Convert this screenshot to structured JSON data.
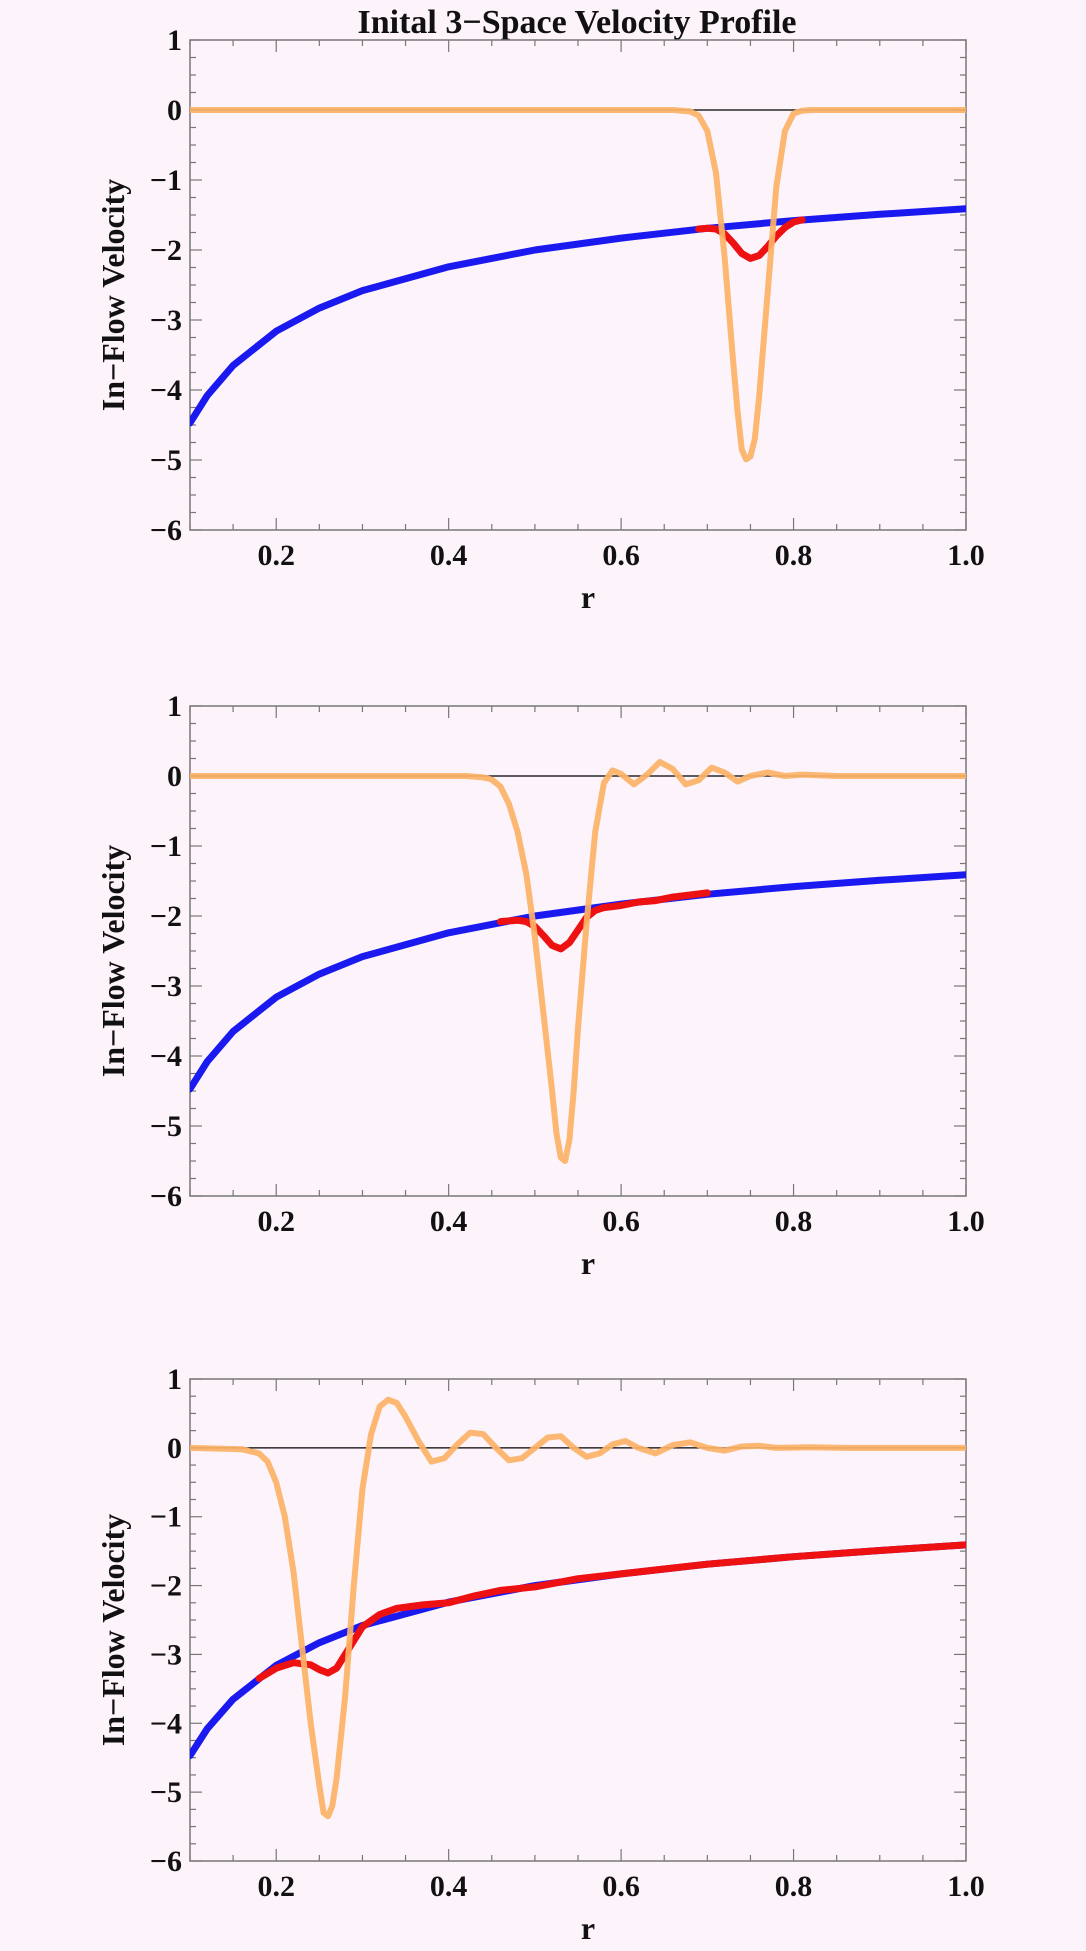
{
  "colors": {
    "background": "#fdf3fb",
    "frame": "#777777",
    "zero_line": "#000000",
    "blue_curve": "#1a1af0",
    "red_curve": "#ee1111",
    "orange_curve": "#fcb266"
  },
  "chart_data": [
    {
      "type": "line",
      "title": "Inital 3−Space Velocity Profile",
      "xlabel": "r",
      "ylabel": "In−Flow Velocity",
      "xlim": [
        0.1,
        1.0
      ],
      "ylim": [
        -6,
        1
      ],
      "x_ticks": [
        0.2,
        0.4,
        0.6,
        0.8,
        1.0
      ],
      "x_tick_labels": [
        "0.2",
        "0.4",
        "0.6",
        "0.8",
        "1.0"
      ],
      "y_ticks": [
        1,
        0,
        -1,
        -2,
        -3,
        -4,
        -5,
        -6
      ],
      "y_tick_labels": [
        "1",
        "0",
        "−1",
        "−2",
        "−3",
        "−4",
        "−5",
        "−6"
      ],
      "zero_line": true,
      "series": [
        {
          "key": "blue",
          "x": [
            0.1,
            0.12,
            0.15,
            0.2,
            0.25,
            0.3,
            0.4,
            0.5,
            0.6,
            0.7,
            0.8,
            0.9,
            1.0
          ],
          "y": [
            -4.47,
            -4.08,
            -3.65,
            -3.16,
            -2.83,
            -2.58,
            -2.24,
            -2.0,
            -1.83,
            -1.69,
            -1.58,
            -1.49,
            -1.41
          ]
        },
        {
          "key": "red",
          "x": [
            0.69,
            0.7,
            0.71,
            0.72,
            0.73,
            0.74,
            0.75,
            0.76,
            0.77,
            0.78,
            0.79,
            0.8,
            0.81
          ],
          "y": [
            -1.7,
            -1.69,
            -1.7,
            -1.77,
            -1.9,
            -2.05,
            -2.12,
            -2.08,
            -1.95,
            -1.8,
            -1.68,
            -1.6,
            -1.57
          ]
        },
        {
          "key": "orange",
          "x": [
            0.1,
            0.66,
            0.68,
            0.69,
            0.7,
            0.71,
            0.72,
            0.73,
            0.735,
            0.74,
            0.745,
            0.75,
            0.755,
            0.76,
            0.77,
            0.78,
            0.79,
            0.8,
            0.81,
            0.82,
            0.84,
            1.0
          ],
          "y": [
            0.0,
            0.0,
            -0.02,
            -0.08,
            -0.3,
            -0.9,
            -2.1,
            -3.6,
            -4.3,
            -4.85,
            -4.99,
            -4.95,
            -4.7,
            -4.1,
            -2.6,
            -1.1,
            -0.3,
            -0.05,
            -0.01,
            0.0,
            0.0,
            0.0
          ]
        }
      ]
    },
    {
      "type": "line",
      "xlabel": "r",
      "ylabel": "In−Flow Velocity",
      "xlim": [
        0.1,
        1.0
      ],
      "ylim": [
        -6,
        1
      ],
      "x_ticks": [
        0.2,
        0.4,
        0.6,
        0.8,
        1.0
      ],
      "x_tick_labels": [
        "0.2",
        "0.4",
        "0.6",
        "0.8",
        "1.0"
      ],
      "y_ticks": [
        1,
        0,
        -1,
        -2,
        -3,
        -4,
        -5,
        -6
      ],
      "y_tick_labels": [
        "1",
        "0",
        "−1",
        "−2",
        "−3",
        "−4",
        "−5",
        "−6"
      ],
      "zero_line": true,
      "series": [
        {
          "key": "blue",
          "x": [
            0.1,
            0.12,
            0.15,
            0.2,
            0.25,
            0.3,
            0.4,
            0.5,
            0.6,
            0.7,
            0.8,
            0.9,
            1.0
          ],
          "y": [
            -4.47,
            -4.08,
            -3.65,
            -3.16,
            -2.83,
            -2.58,
            -2.24,
            -2.0,
            -1.83,
            -1.69,
            -1.58,
            -1.49,
            -1.41
          ]
        },
        {
          "key": "red",
          "x": [
            0.46,
            0.48,
            0.49,
            0.5,
            0.51,
            0.52,
            0.53,
            0.54,
            0.55,
            0.56,
            0.57,
            0.58,
            0.6,
            0.62,
            0.64,
            0.66,
            0.68,
            0.7
          ],
          "y": [
            -2.08,
            -2.06,
            -2.08,
            -2.15,
            -2.28,
            -2.42,
            -2.47,
            -2.38,
            -2.2,
            -2.02,
            -1.92,
            -1.88,
            -1.85,
            -1.8,
            -1.78,
            -1.73,
            -1.7,
            -1.67
          ]
        },
        {
          "key": "orange",
          "x": [
            0.1,
            0.42,
            0.44,
            0.45,
            0.46,
            0.47,
            0.48,
            0.49,
            0.5,
            0.51,
            0.52,
            0.525,
            0.53,
            0.535,
            0.54,
            0.545,
            0.55,
            0.56,
            0.57,
            0.58,
            0.59,
            0.6,
            0.615,
            0.63,
            0.645,
            0.66,
            0.675,
            0.69,
            0.705,
            0.72,
            0.735,
            0.75,
            0.77,
            0.79,
            0.81,
            0.85,
            1.0
          ],
          "y": [
            0.0,
            0.0,
            -0.02,
            -0.05,
            -0.15,
            -0.4,
            -0.8,
            -1.4,
            -2.3,
            -3.4,
            -4.5,
            -5.1,
            -5.45,
            -5.5,
            -5.2,
            -4.5,
            -3.6,
            -2.1,
            -0.8,
            -0.1,
            0.08,
            0.03,
            -0.12,
            0.02,
            0.2,
            0.1,
            -0.12,
            -0.06,
            0.12,
            0.05,
            -0.08,
            0.0,
            0.05,
            0.0,
            0.02,
            0.0,
            0.0
          ]
        }
      ]
    },
    {
      "type": "line",
      "xlabel": "r",
      "ylabel": "In−Flow Velocity",
      "xlim": [
        0.1,
        1.0
      ],
      "ylim": [
        -6,
        1
      ],
      "x_ticks": [
        0.2,
        0.4,
        0.6,
        0.8,
        1.0
      ],
      "x_tick_labels": [
        "0.2",
        "0.4",
        "0.6",
        "0.8",
        "1.0"
      ],
      "y_ticks": [
        1,
        0,
        -1,
        -2,
        -3,
        -4,
        -5,
        -6
      ],
      "y_tick_labels": [
        "1",
        "0",
        "−1",
        "−2",
        "−3",
        "−4",
        "−5",
        "−6"
      ],
      "zero_line": true,
      "series": [
        {
          "key": "blue",
          "x": [
            0.1,
            0.12,
            0.15,
            0.2,
            0.25,
            0.3,
            0.4,
            0.5,
            0.6,
            0.7,
            0.8,
            0.9,
            1.0
          ],
          "y": [
            -4.47,
            -4.08,
            -3.65,
            -3.16,
            -2.83,
            -2.58,
            -2.24,
            -2.0,
            -1.83,
            -1.69,
            -1.58,
            -1.49,
            -1.41
          ]
        },
        {
          "key": "red",
          "x": [
            0.18,
            0.2,
            0.22,
            0.24,
            0.25,
            0.26,
            0.27,
            0.28,
            0.3,
            0.32,
            0.34,
            0.37,
            0.4,
            0.43,
            0.46,
            0.5,
            0.55,
            0.6,
            0.65,
            0.7,
            0.8,
            0.9,
            1.0
          ],
          "y": [
            -3.35,
            -3.2,
            -3.12,
            -3.15,
            -3.22,
            -3.27,
            -3.2,
            -3.0,
            -2.6,
            -2.42,
            -2.33,
            -2.28,
            -2.25,
            -2.15,
            -2.07,
            -2.02,
            -1.9,
            -1.83,
            -1.76,
            -1.69,
            -1.58,
            -1.49,
            -1.41
          ]
        },
        {
          "key": "orange",
          "x": [
            0.1,
            0.16,
            0.18,
            0.19,
            0.2,
            0.21,
            0.22,
            0.23,
            0.24,
            0.25,
            0.255,
            0.26,
            0.265,
            0.27,
            0.28,
            0.29,
            0.3,
            0.31,
            0.32,
            0.33,
            0.34,
            0.35,
            0.365,
            0.38,
            0.395,
            0.41,
            0.425,
            0.44,
            0.455,
            0.47,
            0.485,
            0.5,
            0.515,
            0.53,
            0.545,
            0.56,
            0.575,
            0.59,
            0.605,
            0.62,
            0.64,
            0.66,
            0.68,
            0.7,
            0.72,
            0.74,
            0.76,
            0.78,
            0.82,
            0.86,
            0.9,
            1.0
          ],
          "y": [
            0.0,
            -0.02,
            -0.08,
            -0.2,
            -0.5,
            -1.0,
            -1.8,
            -2.9,
            -4.0,
            -4.9,
            -5.3,
            -5.35,
            -5.2,
            -4.8,
            -3.6,
            -2.0,
            -0.6,
            0.2,
            0.6,
            0.7,
            0.65,
            0.45,
            0.1,
            -0.2,
            -0.15,
            0.05,
            0.22,
            0.2,
            0.0,
            -0.18,
            -0.15,
            0.0,
            0.15,
            0.17,
            0.0,
            -0.13,
            -0.08,
            0.05,
            0.1,
            0.0,
            -0.08,
            0.04,
            0.08,
            0.0,
            -0.04,
            0.02,
            0.03,
            0.0,
            0.01,
            0.0,
            0.0,
            0.0
          ]
        }
      ]
    }
  ]
}
